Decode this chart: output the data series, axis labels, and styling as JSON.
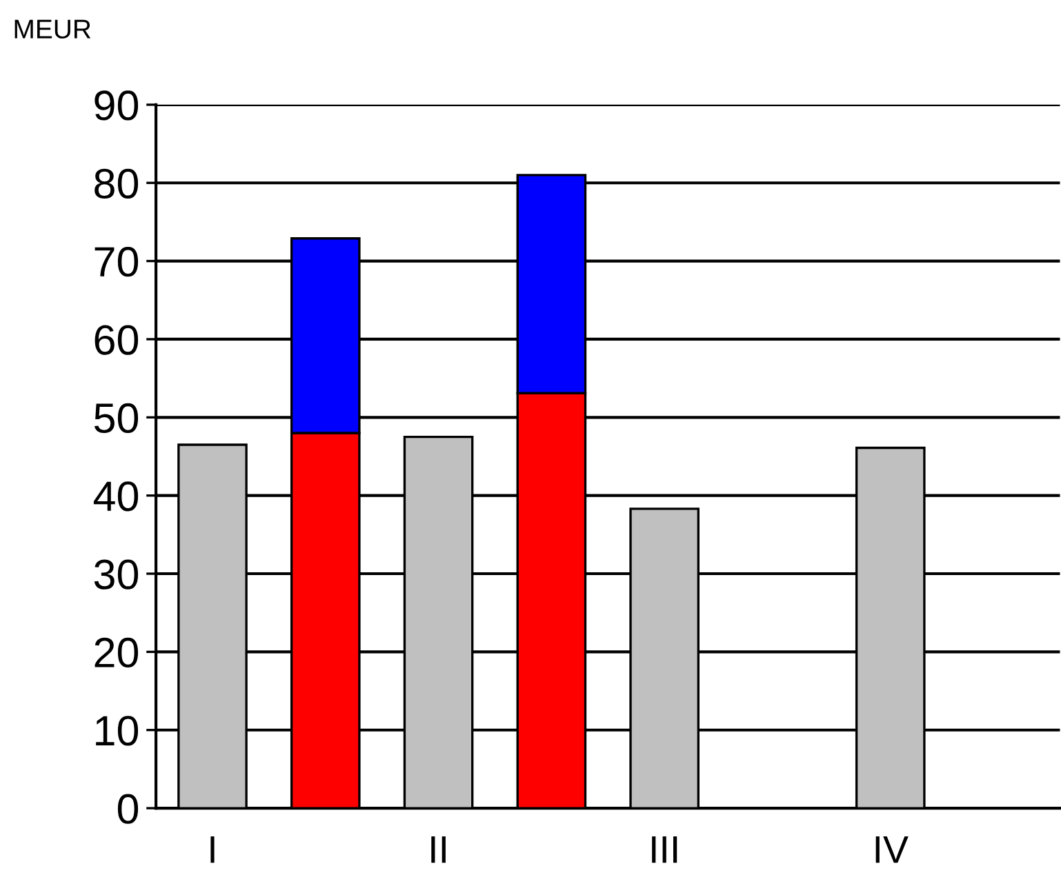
{
  "chart_data": {
    "type": "bar",
    "ylabel": "MEUR",
    "stacked": true,
    "categories": [
      "I",
      null,
      "II",
      null,
      "III",
      null,
      "IV",
      null
    ],
    "series": [
      {
        "color": "#c0c0c0",
        "values": [
          46.5,
          null,
          47.5,
          null,
          38.3,
          null,
          46.1,
          null
        ]
      },
      {
        "color": "#ff0000",
        "values": [
          null,
          48.0,
          null,
          53.1,
          null,
          null,
          null,
          null
        ]
      },
      {
        "color": "#0000ff",
        "values": [
          null,
          24.9,
          null,
          27.9,
          null,
          null,
          null,
          null
        ]
      }
    ],
    "ylim": [
      0,
      90
    ],
    "yticks": [
      0,
      10,
      20,
      30,
      40,
      50,
      60,
      70,
      80,
      90
    ],
    "grid": "y",
    "legend": false
  }
}
